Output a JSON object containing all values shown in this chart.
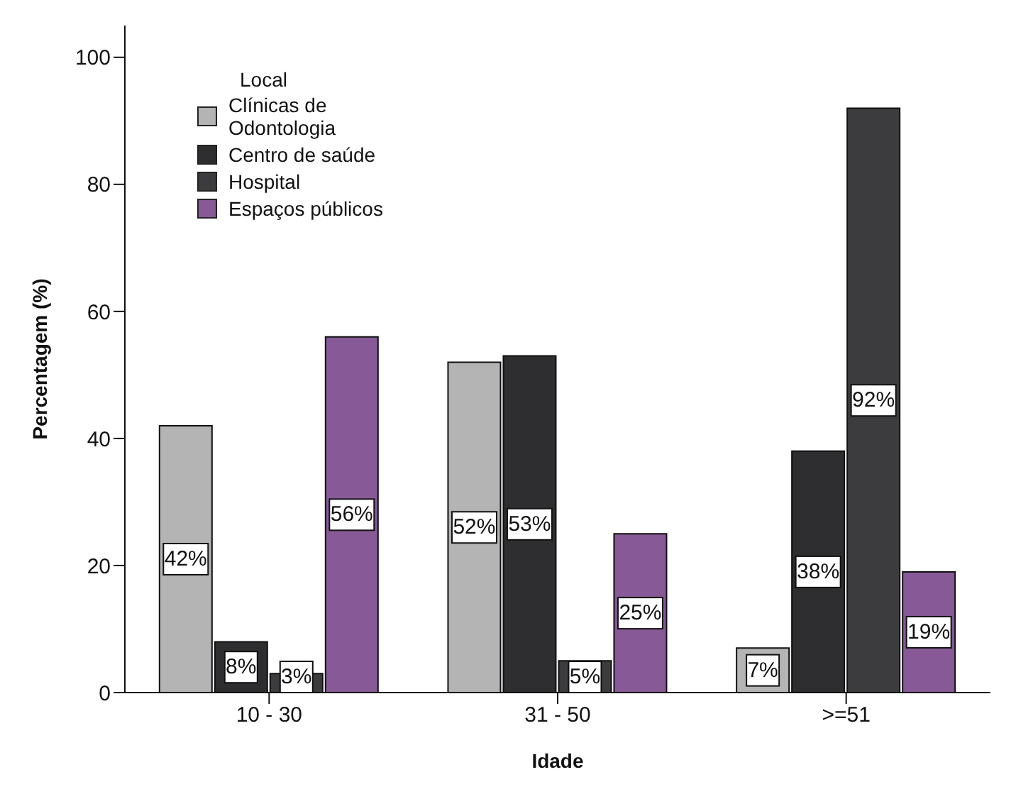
{
  "chart_data": {
    "type": "bar",
    "xlabel": "Idade",
    "ylabel": "Percentagem (%)",
    "legend_title": "Local",
    "legend": "top left",
    "grid": false,
    "categories": [
      "10 - 30",
      "31 - 50",
      ">=51"
    ],
    "series": [
      {
        "name": "Clínicas de Odontologia",
        "color": "#b4b4b4",
        "values": [
          42,
          52,
          7
        ],
        "value_labels": [
          "42%",
          "52%",
          "7%"
        ]
      },
      {
        "name": "Centro de saúde",
        "color": "#2e2e30",
        "values": [
          8,
          53,
          38
        ],
        "value_labels": [
          "8%",
          "53%",
          "38%"
        ]
      },
      {
        "name": "Hospital",
        "color": "#3c3c3e",
        "values": [
          3,
          5,
          92
        ],
        "value_labels": [
          "3%",
          "5%",
          "92%"
        ]
      },
      {
        "name": "Espaços públicos",
        "color": "#875a97",
        "values": [
          56,
          25,
          19
        ],
        "value_labels": [
          "56%",
          "25%",
          "19%"
        ]
      }
    ],
    "ylim": [
      0,
      105
    ],
    "yticks": [
      0,
      20,
      40,
      60,
      80,
      100
    ]
  }
}
